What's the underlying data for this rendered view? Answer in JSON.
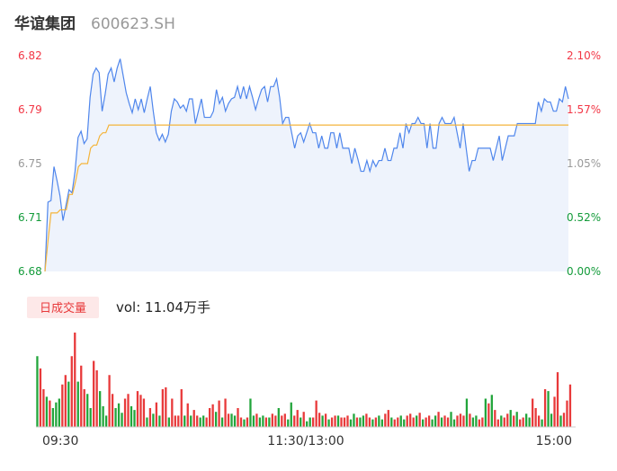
{
  "header": {
    "name": "华谊集团",
    "code": "600623.SH"
  },
  "volume": {
    "badge": "日成交量",
    "summary": "vol: 11.04万手"
  },
  "colors": {
    "up": "#f23645",
    "down": "#139b3a",
    "neutral": "#999999",
    "price_line": "#4f86ec",
    "avg_line": "#f4b43b",
    "area": "#eef3fc",
    "vol_up": "#e8393a",
    "vol_down": "#22a53b",
    "badge_bg": "#fde8e8"
  },
  "chart_data": [
    {
      "type": "line",
      "title": "",
      "x_ticks": [
        "09:30",
        "11:30/13:00",
        "15:00"
      ],
      "ylim": [
        6.68,
        6.82
      ],
      "y_ticks_left": [
        "6.82",
        "6.79",
        "6.75",
        "6.71",
        "6.68"
      ],
      "y_ticks_right": [
        "2.10%",
        "1.57%",
        "1.05%",
        "0.52%",
        "0.00%"
      ],
      "series": [
        {
          "values": [
            6.68,
            6.725,
            6.726,
            6.748,
            6.739,
            6.729,
            6.713,
            6.723,
            6.733,
            6.731,
            6.745,
            6.767,
            6.771,
            6.763,
            6.766,
            6.793,
            6.808,
            6.812,
            6.809,
            6.784,
            6.795,
            6.808,
            6.812,
            6.803,
            6.812,
            6.818,
            6.807,
            6.796,
            6.789,
            6.783,
            6.792,
            6.785,
            6.792,
            6.783,
            6.792,
            6.8,
            6.784,
            6.77,
            6.765,
            6.769,
            6.764,
            6.769,
            6.784,
            6.792,
            6.79,
            6.786,
            6.788,
            6.784,
            6.792,
            6.792,
            6.776,
            6.784,
            6.792,
            6.78,
            6.78,
            6.78,
            6.784,
            6.798,
            6.789,
            6.793,
            6.784,
            6.789,
            6.792,
            6.793,
            6.8,
            6.792,
            6.8,
            6.792,
            6.8,
            6.793,
            6.785,
            6.792,
            6.798,
            6.8,
            6.79,
            6.8,
            6.8,
            6.805,
            6.793,
            6.776,
            6.78,
            6.78,
            6.77,
            6.76,
            6.768,
            6.77,
            6.764,
            6.77,
            6.776,
            6.77,
            6.77,
            6.76,
            6.768,
            6.76,
            6.76,
            6.77,
            6.77,
            6.76,
            6.77,
            6.76,
            6.76,
            6.76,
            6.75,
            6.76,
            6.753,
            6.745,
            6.745,
            6.752,
            6.745,
            6.752,
            6.748,
            6.752,
            6.752,
            6.76,
            6.752,
            6.752,
            6.76,
            6.76,
            6.77,
            6.76,
            6.776,
            6.77,
            6.776,
            6.776,
            6.78,
            6.776,
            6.776,
            6.76,
            6.776,
            6.76,
            6.76,
            6.776,
            6.78,
            6.776,
            6.776,
            6.776,
            6.78,
            6.77,
            6.76,
            6.776,
            6.76,
            6.745,
            6.752,
            6.752,
            6.76,
            6.76,
            6.76,
            6.76,
            6.76,
            6.752,
            6.76,
            6.768,
            6.752,
            6.76,
            6.768,
            6.768,
            6.768,
            6.776,
            6.776,
            6.776,
            6.776,
            6.776,
            6.776,
            6.776,
            6.79,
            6.784,
            6.792,
            6.79,
            6.79,
            6.784,
            6.784,
            6.792,
            6.79,
            6.8,
            6.792
          ]
        },
        {
          "values": [
            6.68,
            6.7,
            6.718,
            6.718,
            6.718,
            6.72,
            6.72,
            6.72,
            6.73,
            6.73,
            6.738,
            6.748,
            6.75,
            6.75,
            6.75,
            6.76,
            6.762,
            6.762,
            6.768,
            6.77,
            6.77,
            6.775,
            6.775,
            6.775,
            6.775,
            6.775,
            6.775,
            6.775,
            6.775,
            6.775,
            6.775,
            6.775,
            6.775,
            6.775,
            6.775,
            6.775,
            6.775,
            6.775,
            6.775,
            6.775,
            6.775,
            6.775,
            6.775,
            6.775,
            6.775,
            6.775,
            6.775,
            6.775,
            6.775,
            6.775,
            6.775,
            6.775,
            6.775,
            6.775,
            6.775,
            6.775,
            6.775,
            6.775,
            6.775,
            6.775,
            6.775,
            6.775,
            6.775,
            6.775,
            6.775,
            6.775,
            6.775,
            6.775,
            6.775,
            6.775,
            6.775,
            6.775,
            6.775,
            6.775,
            6.775,
            6.775,
            6.775,
            6.775,
            6.775,
            6.775,
            6.775,
            6.775,
            6.775,
            6.775,
            6.775,
            6.775,
            6.775,
            6.775,
            6.775,
            6.775,
            6.775,
            6.775,
            6.775,
            6.775,
            6.775,
            6.775,
            6.775,
            6.775,
            6.775,
            6.775,
            6.775,
            6.775,
            6.775,
            6.775,
            6.775,
            6.775,
            6.775,
            6.775,
            6.775,
            6.775,
            6.775,
            6.775,
            6.775,
            6.775,
            6.775,
            6.775,
            6.775,
            6.775,
            6.775,
            6.775,
            6.775,
            6.775,
            6.775,
            6.775,
            6.775,
            6.775,
            6.775,
            6.775,
            6.775,
            6.775,
            6.775,
            6.775,
            6.775,
            6.775,
            6.775,
            6.775,
            6.775,
            6.775,
            6.775,
            6.775,
            6.775,
            6.775,
            6.775,
            6.775,
            6.775,
            6.775,
            6.775,
            6.775,
            6.775,
            6.775,
            6.775,
            6.775,
            6.775,
            6.775,
            6.775,
            6.775,
            6.775,
            6.775,
            6.775,
            6.775,
            6.775,
            6.775,
            6.775,
            6.775,
            6.775,
            6.775,
            6.775,
            6.775,
            6.775,
            6.775,
            6.775,
            6.775,
            6.775
          ]
        }
      ]
    },
    {
      "type": "bar",
      "title": "",
      "volume_max": 100,
      "series": [
        {
          "values": [
            75,
            62,
            40,
            32,
            28,
            20,
            26,
            30,
            45,
            55,
            48,
            75,
            100,
            48,
            65,
            40,
            35,
            20,
            70,
            60,
            38,
            22,
            12,
            55,
            35,
            20,
            25,
            15,
            30,
            35,
            22,
            18,
            38,
            34,
            30,
            10,
            20,
            14,
            26,
            12,
            40,
            42,
            10,
            30,
            12,
            12,
            40,
            12,
            25,
            12,
            18,
            12,
            10,
            12,
            10,
            20,
            24,
            16,
            28,
            10,
            30,
            14,
            14,
            12,
            20,
            10,
            8,
            10,
            30,
            12,
            14,
            10,
            12,
            10,
            10,
            14,
            12,
            20,
            12,
            14,
            8,
            26,
            12,
            18,
            10,
            16,
            6,
            10,
            10,
            28,
            15,
            12,
            14,
            8,
            10,
            12,
            12,
            10,
            10,
            12,
            8,
            14,
            10,
            10,
            12,
            14,
            10,
            8,
            10,
            12,
            8,
            14,
            18,
            10,
            8,
            10,
            12,
            8,
            12,
            14,
            10,
            12,
            15,
            8,
            10,
            12,
            8,
            12,
            16,
            10,
            12,
            10,
            16,
            8,
            12,
            14,
            12,
            30,
            14,
            10,
            12,
            8,
            10,
            30,
            25,
            34,
            18,
            8,
            12,
            10,
            14,
            18,
            12,
            16,
            8,
            10,
            14,
            10,
            30,
            20,
            12,
            8,
            40,
            38,
            14,
            32,
            58,
            12,
            15,
            28,
            45
          ]
        },
        {
          "values": [
            1,
            0,
            0,
            1,
            0,
            1,
            1,
            1,
            0,
            0,
            1,
            0,
            0,
            1,
            0,
            0,
            1,
            1,
            0,
            0,
            1,
            1,
            1,
            0,
            0,
            1,
            1,
            1,
            0,
            0,
            1,
            1,
            0,
            0,
            0,
            1,
            0,
            1,
            0,
            1,
            0,
            0,
            1,
            0,
            0,
            0,
            0,
            1,
            0,
            1,
            0,
            0,
            1,
            1,
            0,
            0,
            0,
            1,
            0,
            1,
            0,
            0,
            1,
            1,
            0,
            0,
            1,
            0,
            1,
            1,
            0,
            1,
            1,
            0,
            1,
            0,
            0,
            1,
            0,
            0,
            1,
            1,
            0,
            0,
            1,
            0,
            1,
            1,
            0,
            0,
            0,
            1,
            0,
            1,
            0,
            0,
            1,
            0,
            0,
            0,
            1,
            1,
            0,
            1,
            1,
            0,
            0,
            1,
            0,
            1,
            1,
            0,
            0,
            1,
            0,
            0,
            1,
            1,
            0,
            0,
            0,
            1,
            0,
            1,
            0,
            0,
            1,
            1,
            0,
            1,
            0,
            0,
            1,
            1,
            0,
            0,
            0,
            1,
            0,
            1,
            1,
            0,
            0,
            1,
            0,
            1,
            0,
            0,
            1,
            0,
            0,
            1,
            0,
            1,
            0,
            0,
            1,
            1,
            0,
            0,
            0,
            1,
            0,
            1,
            1,
            0,
            0,
            1,
            0,
            0,
            0
          ]
        }
      ]
    }
  ]
}
